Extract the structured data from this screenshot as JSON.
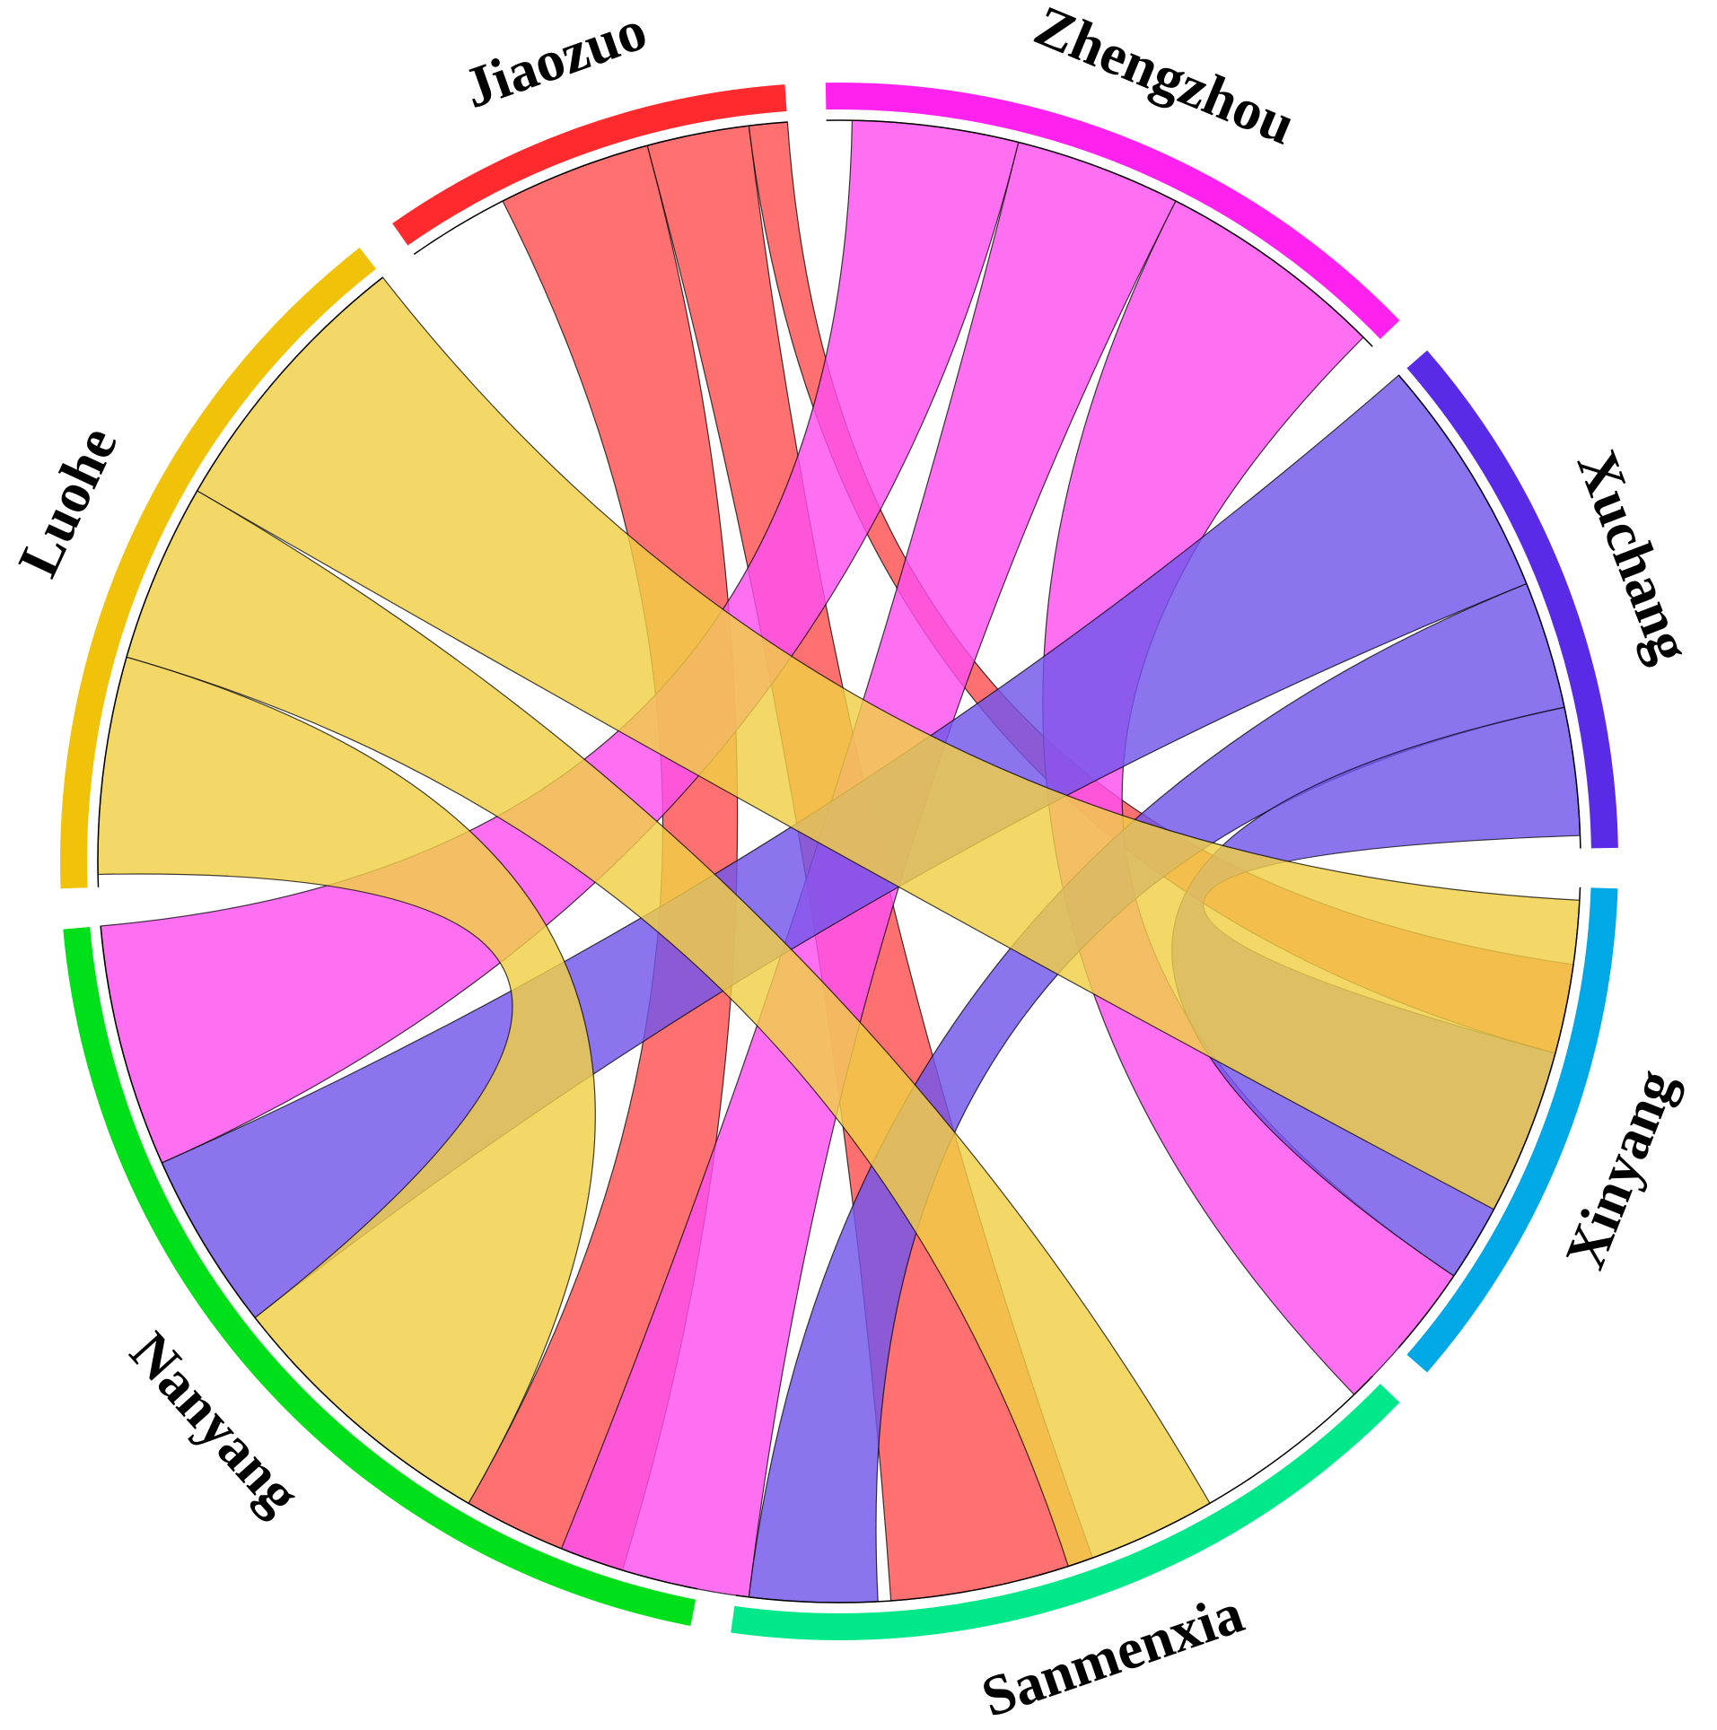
{
  "chart_data": {
    "type": "chord",
    "title": "",
    "legend": "none",
    "groups": [
      {
        "name": "Jiaozuo",
        "color": "#ff2a2e",
        "ribbon_color": "#ff5052",
        "start_deg": -35,
        "end_deg": -4
      },
      {
        "name": "Zhengzhou",
        "color": "#ff22ee",
        "ribbon_color": "#ff4fef",
        "start_deg": -1,
        "end_deg": 46
      },
      {
        "name": "Xuchang",
        "color": "#5a2be6",
        "ribbon_color": "#7355ec",
        "start_deg": 49,
        "end_deg": 89
      },
      {
        "name": "Xinyang",
        "color": "#00a8e6",
        "ribbon_color": "#00a8e6",
        "start_deg": 92,
        "end_deg": 131
      },
      {
        "name": "Sanmenxia",
        "color": "#00e88a",
        "ribbon_color": "#00e88a",
        "start_deg": 134,
        "end_deg": 188
      },
      {
        "name": "Nanyang",
        "color": "#00e01a",
        "ribbon_color": "#00e01a",
        "start_deg": 191,
        "end_deg": 265
      },
      {
        "name": "Luohe",
        "color": "#f0c30a",
        "ribbon_color": "#f2cf45",
        "start_deg": 268,
        "end_deg": 322
      }
    ],
    "links": [
      {
        "source": "Jiaozuo",
        "target": "Nanyang",
        "source_span": [
          -27,
          -15
        ],
        "target_span": [
          197,
          210
        ]
      },
      {
        "source": "Jiaozuo",
        "target": "Sanmenxia",
        "source_span": [
          -15,
          -7
        ],
        "target_span": [
          160,
          176
        ]
      },
      {
        "source": "Jiaozuo",
        "target": "Xinyang",
        "source_span": [
          -7,
          -4
        ],
        "target_span": [
          98,
          105
        ]
      },
      {
        "source": "Zhengzhou",
        "target": "Nanyang",
        "source_span": [
          1,
          14
        ],
        "target_span": [
          246,
          265
        ]
      },
      {
        "source": "Zhengzhou",
        "target": "Sanmenxia",
        "source_span": [
          14,
          27
        ],
        "target_span": [
          187,
          202
        ]
      },
      {
        "source": "Zhengzhou",
        "target": "Xinyang",
        "source_span": [
          27,
          45
        ],
        "target_span": [
          124,
          136
        ]
      },
      {
        "source": "Xuchang",
        "target": "Nanyang",
        "source_span": [
          49,
          68
        ],
        "target_span": [
          232,
          246
        ]
      },
      {
        "source": "Xuchang",
        "target": "Sanmenxia",
        "source_span": [
          68,
          78
        ],
        "target_span": [
          177,
          187
        ]
      },
      {
        "source": "Xuchang",
        "target": "Xinyang",
        "source_span": [
          78,
          88
        ],
        "target_span": [
          105,
          124
        ]
      },
      {
        "source": "Luohe",
        "target": "Xinyang",
        "source_span": [
          300,
          322
        ],
        "target_span": [
          93,
          118
        ]
      },
      {
        "source": "Luohe",
        "target": "Sanmenxia",
        "source_span": [
          286,
          300
        ],
        "target_span": [
          150,
          162
        ]
      },
      {
        "source": "Luohe",
        "target": "Nanyang",
        "source_span": [
          269,
          286
        ],
        "target_span": [
          210,
          232
        ]
      }
    ]
  }
}
